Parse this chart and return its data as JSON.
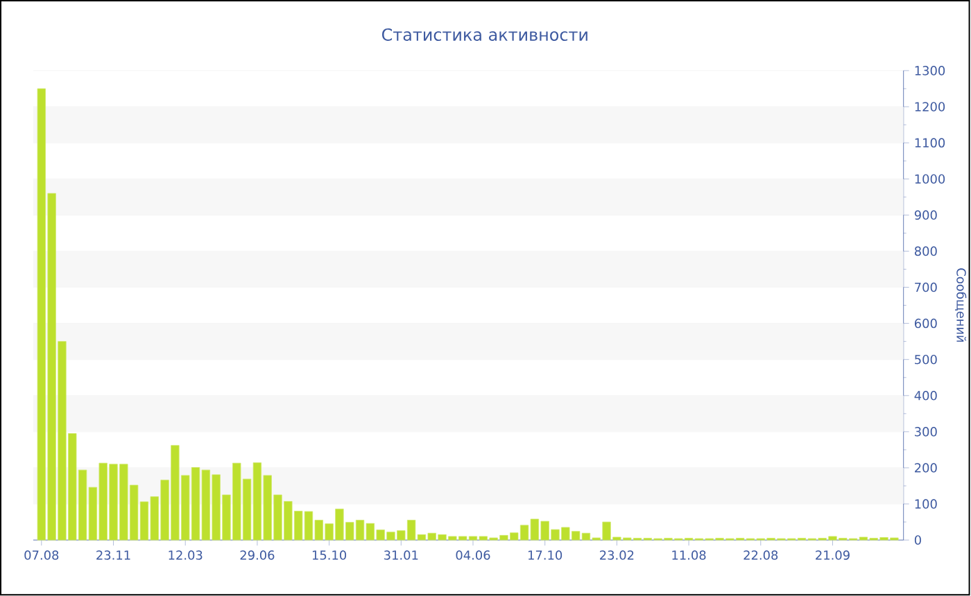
{
  "chart_data": {
    "type": "bar",
    "title": "Статистика активности",
    "ylabel": "Сообщений",
    "categories": [
      "07.08",
      null,
      null,
      null,
      null,
      null,
      null,
      "23.11",
      null,
      null,
      null,
      null,
      null,
      null,
      "12.03",
      null,
      null,
      null,
      null,
      null,
      null,
      "29.06",
      null,
      null,
      null,
      null,
      null,
      null,
      "15.10",
      null,
      null,
      null,
      null,
      null,
      null,
      "31.01",
      null,
      null,
      null,
      null,
      null,
      null,
      "04.06",
      null,
      null,
      null,
      null,
      null,
      null,
      "17.10",
      null,
      null,
      null,
      null,
      null,
      null,
      "23.02",
      null,
      null,
      null,
      null,
      null,
      null,
      "11.08",
      null,
      null,
      null,
      null,
      null,
      null,
      "22.08",
      null,
      null,
      null,
      null,
      null,
      null,
      "21.09",
      null,
      null,
      null,
      null,
      null,
      null
    ],
    "values": [
      1250,
      960,
      550,
      295,
      194,
      146,
      213,
      210,
      210,
      152,
      106,
      120,
      166,
      262,
      179,
      201,
      194,
      181,
      125,
      213,
      169,
      214,
      179,
      125,
      107,
      80,
      79,
      55,
      45,
      86,
      49,
      55,
      46,
      28,
      22,
      26,
      55,
      15,
      19,
      15,
      10,
      10,
      10,
      10,
      6,
      13,
      20,
      41,
      58,
      52,
      29,
      35,
      24,
      19,
      6,
      50,
      8,
      6,
      5,
      5,
      4,
      5,
      4,
      5,
      4,
      4,
      5,
      4,
      5,
      4,
      4,
      5,
      4,
      4,
      5,
      4,
      5,
      10,
      5,
      4,
      8,
      5,
      7,
      6
    ],
    "color": "#bde02e",
    "ylim": [
      0,
      1300
    ],
    "yticks": [
      0,
      100,
      200,
      300,
      400,
      500,
      600,
      700,
      800,
      900,
      1000,
      1100,
      1200,
      1300
    ],
    "grid": "y"
  }
}
